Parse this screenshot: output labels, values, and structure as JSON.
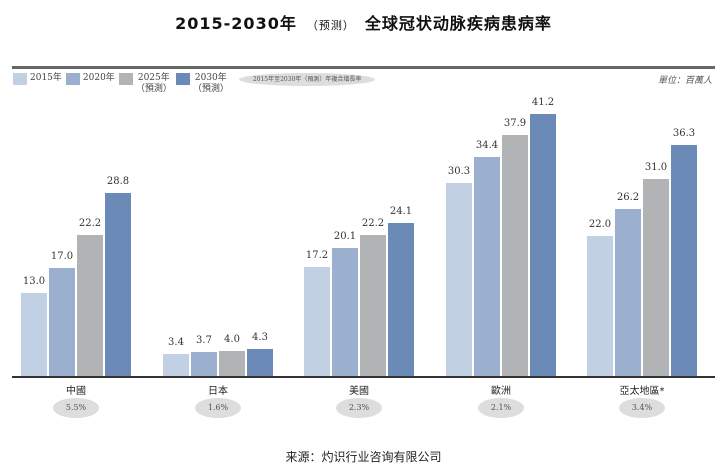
{
  "header": {
    "title_main": "2015-2030年",
    "title_sub": "（预测）",
    "title_rest": "全球冠状动脉疾病患病率"
  },
  "legend": {
    "items": [
      {
        "label": "2015年",
        "sub": "",
        "color": "#c2d0e3"
      },
      {
        "label": "2020年",
        "sub": "",
        "color": "#9bb0cf"
      },
      {
        "label": "2025年",
        "sub": "（預測）",
        "color": "#b2b3b5"
      },
      {
        "label": "2030年",
        "sub": "（預測）",
        "color": "#6b8ab8"
      }
    ],
    "cagr_label": "2015年至2030年（預測）年複合增長率"
  },
  "unit": "單位：百萬人",
  "source": "来源：灼识行业咨询有限公司",
  "chart_data": {
    "type": "bar",
    "title": "2015-2030年（预测）全球冠状动脉疾病患病率",
    "categories": [
      "中國",
      "日本",
      "美國",
      "歐洲",
      "亞太地區*"
    ],
    "series": [
      {
        "name": "2015年",
        "color": "#c2d0e3",
        "values": [
          13.0,
          3.4,
          17.2,
          30.3,
          22.0
        ]
      },
      {
        "name": "2020年",
        "color": "#9bb0cf",
        "values": [
          17.0,
          3.7,
          20.1,
          34.4,
          26.2
        ]
      },
      {
        "name": "2025年（預測）",
        "color": "#b2b3b5",
        "values": [
          22.2,
          4.0,
          22.2,
          37.9,
          31.0
        ]
      },
      {
        "name": "2030年（預測）",
        "color": "#6b8ab8",
        "values": [
          28.8,
          4.3,
          24.1,
          41.2,
          36.3
        ]
      }
    ],
    "cagr": [
      "5.5%",
      "1.6%",
      "2.3%",
      "2.1%",
      "3.4%"
    ],
    "xlabel": "",
    "ylabel": "單位：百萬人",
    "grid": false,
    "legend_position": "top-left",
    "value_labels": [
      [
        "13.0",
        "17.0",
        "22.2",
        "28.8"
      ],
      [
        "3.4",
        "3.7",
        "4.0",
        "4.3"
      ],
      [
        "17.2",
        "20.1",
        "22.2",
        "24.1"
      ],
      [
        "30.3",
        "34.4",
        "37.9",
        "41.2"
      ],
      [
        "22.0",
        "26.2",
        "31.0",
        "36.3"
      ]
    ]
  }
}
